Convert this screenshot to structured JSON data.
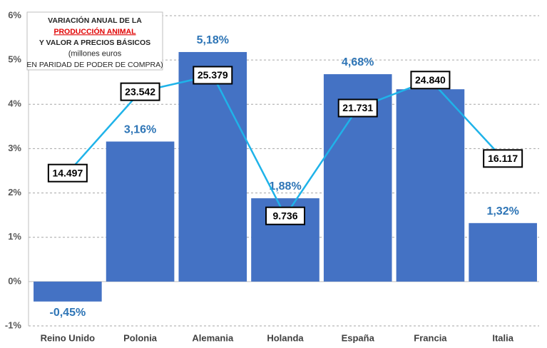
{
  "chart_data": {
    "type": "bar-line",
    "annotation": [
      "VARIACIÓN ANUAL DE LA",
      "PRODUCCIÓN ANIMAL",
      "Y VALOR A PRECIOS BÁSICOS",
      "(millones euros",
      "EN PARIDAD DE PODER DE COMPRA)"
    ],
    "categories": [
      "Reino Unido",
      "Polonia",
      "Alemania",
      "Holanda",
      "España",
      "Francia",
      "Italia"
    ],
    "series": [
      {
        "type": "bar",
        "color": "#4472c4",
        "label_color": "#2e75b6",
        "values": [
          -0.45,
          3.16,
          5.18,
          1.88,
          4.68,
          4.34,
          1.32
        ],
        "value_labels": [
          "-0,45%",
          "3,16%",
          "5,18%",
          "1,88%",
          "4,68%",
          "4,34%",
          "1,32%"
        ]
      },
      {
        "type": "line",
        "axis": "y2",
        "color": "#1fb3e9",
        "values": [
          14497,
          23542,
          25379,
          9736,
          21731,
          24840,
          16117
        ],
        "value_labels": [
          "14.497",
          "23.542",
          "25.379",
          "9.736",
          "21.731",
          "24.840",
          "16.117"
        ]
      }
    ],
    "ylim": [
      -1,
      6
    ],
    "yticks": [
      {
        "value": -1,
        "label": "-1%"
      },
      {
        "value": 0,
        "label": "0%"
      },
      {
        "value": 1,
        "label": "1%"
      },
      {
        "value": 2,
        "label": "2%"
      },
      {
        "value": 3,
        "label": "3%"
      },
      {
        "value": 4,
        "label": "4%"
      },
      {
        "value": 5,
        "label": "5%"
      },
      {
        "value": 6,
        "label": "6%"
      }
    ],
    "y2lim": [
      -2500,
      32000
    ],
    "grid": true
  }
}
